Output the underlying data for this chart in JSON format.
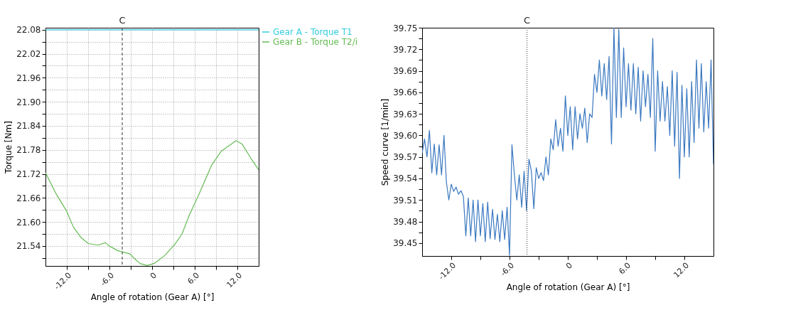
{
  "chart_data": [
    {
      "type": "line",
      "xlabel": "Angle of rotation (Gear A) [°]",
      "ylabel": "Torque [Nm]",
      "grid": true,
      "legend": "top right",
      "line_style": "solid",
      "marker": "none",
      "xlim": [
        -15,
        15
      ],
      "ylim": [
        21.49,
        22.085
      ],
      "xticks": [
        {
          "value": -12,
          "label": "-12.0"
        },
        {
          "value": -9,
          "label": null
        },
        {
          "value": -6,
          "label": "-6.0"
        },
        {
          "value": -3,
          "label": null
        },
        0,
        {
          "value": 3,
          "label": null
        },
        {
          "value": 6,
          "label": "6.0"
        },
        {
          "value": 9,
          "label": null
        },
        {
          "value": 12,
          "label": "12.0"
        }
      ],
      "yticks": [
        {
          "value": 21.51,
          "label": null
        },
        21.54,
        {
          "value": 21.57,
          "label": null
        },
        {
          "value": 21.6,
          "label": "21.60"
        },
        {
          "value": 21.63,
          "label": null
        },
        21.66,
        {
          "value": 21.69,
          "label": null
        },
        21.72,
        {
          "value": 21.75,
          "label": null
        },
        21.78,
        {
          "value": 21.81,
          "label": null
        },
        21.84,
        {
          "value": 21.87,
          "label": null
        },
        {
          "value": 21.9,
          "label": "21.90"
        },
        {
          "value": 21.93,
          "label": null
        },
        21.96,
        {
          "value": 21.99,
          "label": null
        },
        22.02,
        {
          "value": 22.05,
          "label": null
        },
        22.08
      ],
      "ref_lines": [
        {
          "axis": "x",
          "value": -4.2,
          "label": "C",
          "color": "#333333",
          "line_style": "dashed"
        }
      ],
      "series": [
        {
          "name": "Gear A - Torque T1",
          "color": "#33ccdd",
          "x": [
            -15,
            -7.5,
            0,
            7.5,
            15
          ],
          "values": [
            22.08,
            22.08,
            22.08,
            22.08,
            22.08
          ]
        },
        {
          "name": "Gear B - Torque T2/i",
          "color": "#66bb55",
          "x": [
            -15,
            -13.5,
            -12,
            -11.07,
            -10,
            -8.98,
            -7.6,
            -6.56,
            -6.04,
            -4.8,
            -3.09,
            -2.57,
            -1.7,
            -0.66,
            0.38,
            1.77,
            3.16,
            4.2,
            5.24,
            6.62,
            8.36,
            9.75,
            11.13,
            11.83,
            12.69,
            13.9,
            15
          ],
          "values": [
            21.723,
            21.67,
            21.626,
            21.587,
            21.561,
            21.546,
            21.542,
            21.548,
            21.54,
            21.528,
            21.52,
            21.51,
            21.496,
            21.491,
            21.497,
            21.516,
            21.543,
            21.569,
            21.617,
            21.67,
            21.741,
            21.777,
            21.794,
            21.803,
            21.794,
            21.759,
            21.73
          ]
        }
      ]
    },
    {
      "type": "line",
      "xlabel": "Angle of rotation (Gear A) [°]",
      "ylabel": "Speed curve [1/min]",
      "grid": false,
      "legend": false,
      "line_style": "solid",
      "marker": "none",
      "xlim": [
        -15,
        15
      ],
      "ylim": [
        39.432,
        39.75
      ],
      "xticks": [
        {
          "value": -12,
          "label": "-12.0"
        },
        {
          "value": -9,
          "label": null
        },
        {
          "value": -6,
          "label": "-6.0"
        },
        {
          "value": -3,
          "label": null
        },
        0,
        {
          "value": 3,
          "label": null
        },
        {
          "value": 6,
          "label": "6.0"
        },
        {
          "value": 9,
          "label": null
        },
        {
          "value": 12,
          "label": "12.0"
        }
      ],
      "yticks": [
        39.45,
        {
          "value": 39.465,
          "label": null
        },
        39.48,
        {
          "value": 39.495,
          "label": null
        },
        39.51,
        {
          "value": 39.525,
          "label": null
        },
        39.54,
        {
          "value": 39.555,
          "label": null
        },
        39.57,
        {
          "value": 39.585,
          "label": null
        },
        {
          "value": 39.6,
          "label": "39.60"
        },
        {
          "value": 39.615,
          "label": null
        },
        39.63,
        {
          "value": 39.645,
          "label": null
        },
        39.66,
        {
          "value": 39.675,
          "label": null
        },
        39.69,
        {
          "value": 39.705,
          "label": null
        },
        39.72,
        {
          "value": 39.735,
          "label": null
        },
        39.75
      ],
      "ref_lines": [
        {
          "axis": "x",
          "value": -4.2,
          "label": "C",
          "color": "#333333",
          "line_style": "dotted"
        }
      ],
      "series": [
        {
          "color": "#3a78c0",
          "x": [
            -15,
            -14.75,
            -14.5,
            -14.25,
            -14,
            -13.75,
            -13.5,
            -13.25,
            -13,
            -12.75,
            -12.5,
            -12.25,
            -12,
            -11.75,
            -11.5,
            -11.25,
            -11,
            -10.75,
            -10.5,
            -10.25,
            -10,
            -9.75,
            -9.5,
            -9.25,
            -9,
            -8.75,
            -8.5,
            -8.25,
            -8,
            -7.75,
            -7.5,
            -7.25,
            -7,
            -6.75,
            -6.5,
            -6.25,
            -6,
            -5.75,
            -5.5,
            -5.25,
            -5,
            -4.75,
            -4.5,
            -4.25,
            -4,
            -3.75,
            -3.5,
            -3.25,
            -3,
            -2.75,
            -2.5,
            -2.25,
            -2,
            -1.75,
            -1.5,
            -1.25,
            -1,
            -0.75,
            -0.5,
            -0.25,
            0,
            0.25,
            0.5,
            0.75,
            1,
            1.25,
            1.5,
            1.75,
            2,
            2.25,
            2.5,
            2.75,
            3,
            3.25,
            3.5,
            3.75,
            4,
            4.25,
            4.5,
            4.75,
            5,
            5.25,
            5.5,
            5.75,
            6,
            6.25,
            6.5,
            6.75,
            7,
            7.25,
            7.5,
            7.75,
            8,
            8.25,
            8.5,
            8.75,
            9,
            9.25,
            9.5,
            9.75,
            10,
            10.25,
            10.5,
            10.75,
            11,
            11.25,
            11.5,
            11.75,
            12,
            12.25,
            12.5,
            12.75,
            13,
            13.25,
            13.5,
            13.75,
            14,
            14.25,
            14.5,
            14.75,
            15
          ],
          "values": [
            39.575,
            39.595,
            39.57,
            39.607,
            39.548,
            39.588,
            39.545,
            39.587,
            39.545,
            39.6,
            39.535,
            39.51,
            39.532,
            39.522,
            39.528,
            39.518,
            39.523,
            39.515,
            39.46,
            39.513,
            39.46,
            39.51,
            39.452,
            39.51,
            39.46,
            39.505,
            39.452,
            39.507,
            39.456,
            39.497,
            39.455,
            39.49,
            39.452,
            39.495,
            39.455,
            39.5,
            39.433,
            39.587,
            39.545,
            39.51,
            39.545,
            39.5,
            39.55,
            39.495,
            39.567,
            39.55,
            39.498,
            39.555,
            39.54,
            39.548,
            39.537,
            39.57,
            39.545,
            39.595,
            39.58,
            39.622,
            39.585,
            39.61,
            39.578,
            39.655,
            39.6,
            39.64,
            39.58,
            39.64,
            39.595,
            39.63,
            39.61,
            39.638,
            39.59,
            39.63,
            39.625,
            39.685,
            39.66,
            39.705,
            39.655,
            39.7,
            39.65,
            39.71,
            39.588,
            39.75,
            39.625,
            39.748,
            39.625,
            39.722,
            39.64,
            39.7,
            39.635,
            39.7,
            39.63,
            39.695,
            39.62,
            39.69,
            39.64,
            39.685,
            39.625,
            39.735,
            39.578,
            39.69,
            39.62,
            39.675,
            39.62,
            39.668,
            39.6,
            39.69,
            39.585,
            39.688,
            39.54,
            39.67,
            39.57,
            39.665,
            39.57,
            39.675,
            39.59,
            39.705,
            39.61,
            39.7,
            39.605,
            39.675,
            39.61,
            39.705,
            39.56
          ]
        }
      ]
    }
  ]
}
